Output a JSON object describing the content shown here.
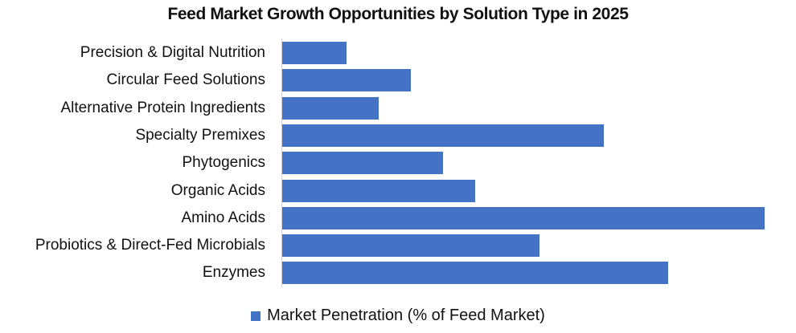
{
  "chart_data": {
    "type": "bar",
    "orientation": "horizontal",
    "title": "Feed Market Growth Opportunities by Solution Type in 2025",
    "xlabel": "",
    "ylabel": "",
    "categories": [
      "Precision & Digital Nutrition",
      "Circular Feed Solutions",
      "Alternative Protein Ingredients",
      "Specialty Premixes",
      "Phytogenics",
      "Organic Acids",
      "Amino Acids",
      "Probiotics & Direct-Fed Microbials",
      "Enzymes"
    ],
    "series": [
      {
        "name": "Market Penetration (% of Feed Market)",
        "color": "#4472C4",
        "values": [
          2,
          4,
          3,
          10,
          5,
          6,
          15,
          8,
          12
        ]
      }
    ],
    "xlim": [
      0,
      15.5
    ],
    "grid": false,
    "axis_ticks_visible": false,
    "legend_position": "bottom"
  },
  "legend": {
    "label": "Market Penetration (% of Feed Market)"
  }
}
